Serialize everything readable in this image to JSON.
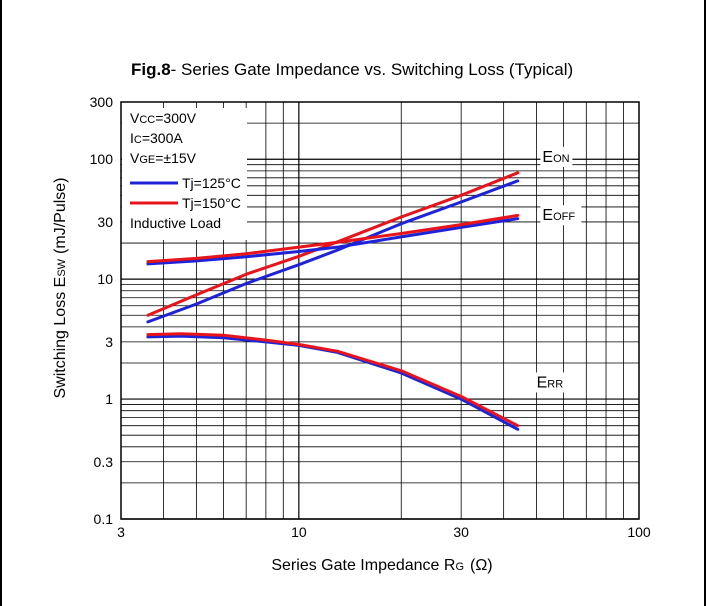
{
  "chart_data": {
    "type": "line",
    "title_bold": "Fig.8",
    "title_rest": "- Series Gate Impedance vs. Switching Loss  (Typical)",
    "xlabel": {
      "main": "Series Gate Impedance R",
      "sub": "G",
      "unit": "(Ω)"
    },
    "ylabel": {
      "main": "Switching Loss E",
      "sub": "SW",
      "unit": "(mJ/Pulse)"
    },
    "x_scale": "log",
    "y_scale": "log",
    "xlim": [
      3,
      100
    ],
    "ylim": [
      0.1,
      300
    ],
    "x_ticks": [
      {
        "v": 3,
        "label": "3"
      },
      {
        "v": 10,
        "label": "10"
      },
      {
        "v": 30,
        "label": "30"
      },
      {
        "v": 100,
        "label": "100"
      }
    ],
    "y_ticks": [
      {
        "v": 300,
        "label": "300"
      },
      {
        "v": 100,
        "label": "100"
      },
      {
        "v": 30,
        "label": "30"
      },
      {
        "v": 10,
        "label": "10"
      },
      {
        "v": 3,
        "label": "3"
      },
      {
        "v": 1,
        "label": "1"
      },
      {
        "v": 0.3,
        "label": "0.3"
      },
      {
        "v": 0.1,
        "label": "0.1"
      }
    ],
    "grid": true,
    "conditions": [
      {
        "pre": "V",
        "sub": "CC",
        "post": "=300V"
      },
      {
        "pre": "I",
        "sub": "C",
        "post": "=300A"
      },
      {
        "pre": "V",
        "sub": "GE",
        "post": "=±15V"
      }
    ],
    "load_note": "Inductive Load",
    "legend_position": "top-left",
    "colors": {
      "Tj=125°C": "#1f23d8",
      "Tj=150°C": "#e8141b"
    },
    "curve_labels": [
      {
        "main": "E",
        "sub": "ON",
        "x": 52,
        "y": 95
      },
      {
        "main": "E",
        "sub": "OFF",
        "x": 52,
        "y": 31
      },
      {
        "main": "E",
        "sub": "RR",
        "x": 50,
        "y": 1.25
      }
    ],
    "series": [
      {
        "name": "Tj=125°C",
        "curve": "EON",
        "x": [
          3.6,
          5,
          7,
          10,
          13,
          20,
          30,
          44
        ],
        "y": [
          4.4,
          6.2,
          9.2,
          13.2,
          17.5,
          29,
          44,
          66
        ]
      },
      {
        "name": "Tj=150°C",
        "curve": "EON",
        "x": [
          3.6,
          5,
          7,
          10,
          13,
          20,
          30,
          44
        ],
        "y": [
          5.0,
          7.4,
          11.0,
          15.5,
          20.5,
          33,
          50,
          77
        ]
      },
      {
        "name": "Tj=125°C",
        "curve": "EOFF",
        "x": [
          3.6,
          5,
          7,
          10,
          13,
          20,
          30,
          44
        ],
        "y": [
          13.4,
          14.2,
          15.4,
          17.0,
          18.5,
          22.5,
          27,
          32
        ]
      },
      {
        "name": "Tj=150°C",
        "curve": "EOFF",
        "x": [
          3.6,
          5,
          7,
          10,
          13,
          20,
          30,
          44
        ],
        "y": [
          14.0,
          14.9,
          16.3,
          18.5,
          20.3,
          24,
          28.5,
          34
        ]
      },
      {
        "name": "Tj=125°C",
        "curve": "ERR",
        "x": [
          3.6,
          4.5,
          6,
          8,
          10,
          13,
          20,
          30,
          44
        ],
        "y": [
          3.3,
          3.35,
          3.25,
          3.0,
          2.8,
          2.45,
          1.65,
          1.0,
          0.56
        ]
      },
      {
        "name": "Tj=150°C",
        "curve": "ERR",
        "x": [
          3.6,
          4.5,
          6,
          8,
          10,
          13,
          20,
          30,
          44
        ],
        "y": [
          3.45,
          3.5,
          3.4,
          3.1,
          2.85,
          2.5,
          1.72,
          1.05,
          0.6
        ]
      }
    ]
  }
}
